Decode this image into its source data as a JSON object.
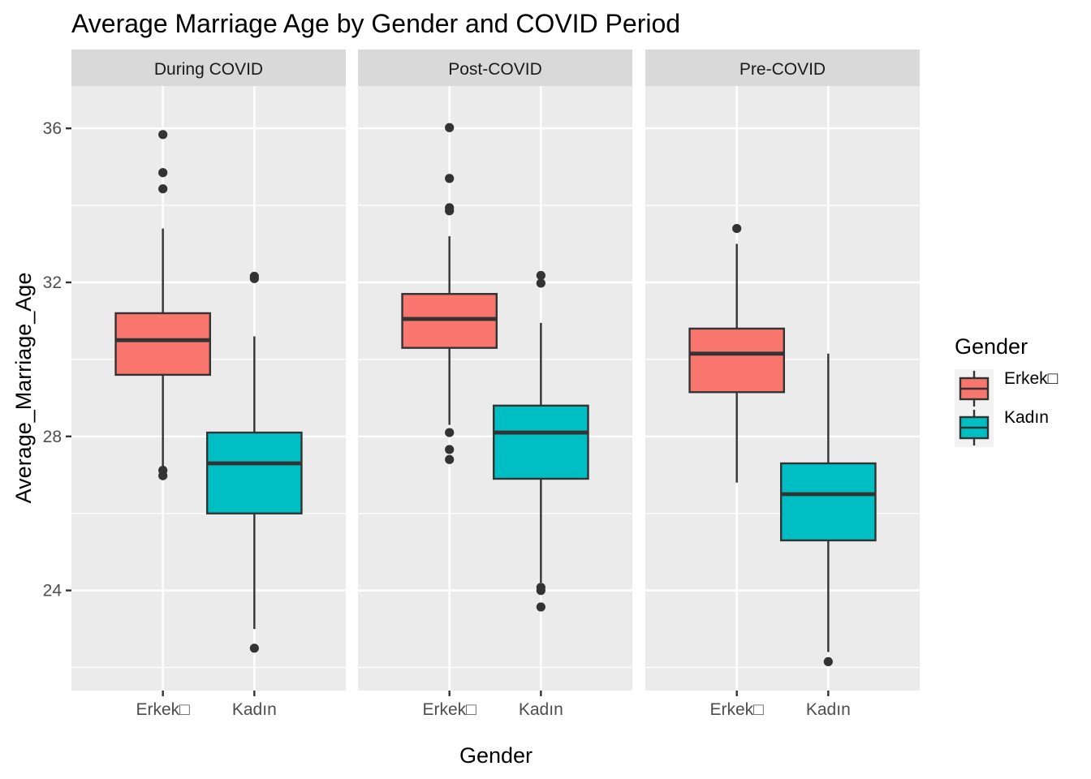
{
  "chart_data": {
    "type": "boxplot",
    "title": "Average Marriage Age by Gender and COVID Period",
    "xlabel": "Gender",
    "ylabel": "Average_Marriage_Age",
    "ylim": [
      21.4,
      37.1
    ],
    "y_ticks": [
      24,
      28,
      32,
      36
    ],
    "grid": true,
    "categories": [
      "Erkek□",
      "Kadın"
    ],
    "legend": {
      "title": "Gender",
      "position": "right",
      "entries": [
        {
          "label": "Erkek□",
          "color": "#F8766D"
        },
        {
          "label": "Kadın",
          "color": "#00BFC4"
        }
      ]
    },
    "colors": {
      "Erkek": "#F8766D",
      "Kadin": "#00BFC4",
      "panel_bg": "#EBEBEB",
      "strip_bg": "#D9D9D9",
      "outline": "#333333"
    },
    "facets": [
      {
        "name": "During COVID",
        "boxes": [
          {
            "category": "Erkek□",
            "whisker_low": 27.1,
            "q1": 29.6,
            "median": 30.5,
            "q3": 31.2,
            "whisker_high": 33.4,
            "outliers": [
              35.84,
              34.85,
              34.43,
              27.12,
              26.98
            ]
          },
          {
            "category": "Kadın",
            "whisker_low": 23.0,
            "q1": 26.0,
            "median": 27.3,
            "q3": 28.1,
            "whisker_high": 30.6,
            "outliers": [
              32.16,
              32.1,
              22.5
            ]
          }
        ]
      },
      {
        "name": "Post-COVID",
        "boxes": [
          {
            "category": "Erkek□",
            "whisker_low": 28.3,
            "q1": 30.3,
            "median": 31.05,
            "q3": 31.7,
            "whisker_high": 33.2,
            "outliers": [
              36.02,
              34.7,
              33.94,
              33.86,
              28.1,
              27.66,
              27.4
            ]
          },
          {
            "category": "Kadın",
            "whisker_low": 24.2,
            "q1": 26.9,
            "median": 28.1,
            "q3": 28.8,
            "whisker_high": 30.95,
            "outliers": [
              32.18,
              31.98,
              24.08,
              24.0,
              23.57
            ]
          }
        ]
      },
      {
        "name": "Pre-COVID",
        "boxes": [
          {
            "category": "Erkek□",
            "whisker_low": 26.8,
            "q1": 29.15,
            "median": 30.15,
            "q3": 30.8,
            "whisker_high": 33.0,
            "outliers": [
              33.4
            ]
          },
          {
            "category": "Kadın",
            "whisker_low": 22.4,
            "q1": 25.3,
            "median": 26.5,
            "q3": 27.3,
            "whisker_high": 30.15,
            "outliers": [
              22.15
            ]
          }
        ]
      }
    ]
  }
}
